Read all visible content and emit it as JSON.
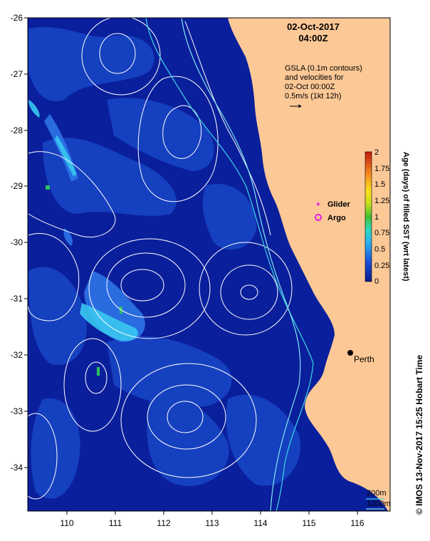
{
  "title": {
    "date": "02-Oct-2017",
    "time": "04:00Z"
  },
  "annotation": {
    "line1": "GSLA (0.1m contours)",
    "line2": "and velocities for",
    "line3": "02-Oct 00:00Z",
    "line4": "0.5m/s (1kt 12h)"
  },
  "axes": {
    "y_ticks": [
      "-26",
      "-27",
      "-28",
      "-29",
      "-30",
      "-31",
      "-32",
      "-33",
      "-34"
    ],
    "x_ticks": [
      "110",
      "111",
      "112",
      "113",
      "114",
      "115",
      "116"
    ]
  },
  "colorbar": {
    "label": "Age (days) of filled SST (wrt latest)",
    "ticks": [
      "2",
      "1.75",
      "1.5",
      "1.25",
      "1",
      "0.75",
      "0.5",
      "0.25",
      "0"
    ],
    "range": [
      0,
      2
    ]
  },
  "legend": {
    "glider": "Glider",
    "argo": "Argo"
  },
  "places": {
    "perth": "Perth"
  },
  "bathymetry": {
    "contour1": "200m",
    "contour2": "1000m"
  },
  "credit": "© IMOS 13-Nov-2017 15:25 Hobart Time",
  "colors": {
    "land": "#fcc896",
    "ocean_deep": "#0a1f9c",
    "ocean_mid": "#1746c6",
    "ocean_light": "#2c74e8",
    "sst_cyan": "#38c8f0",
    "contour": "#ffffff",
    "bathy200": "#3ad6e6",
    "bathy1000": "#7fe6f0"
  }
}
